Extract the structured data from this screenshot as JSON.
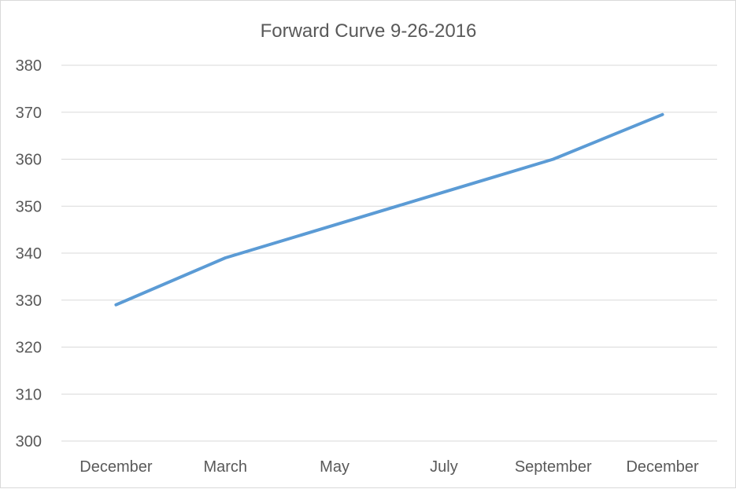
{
  "chart_data": {
    "type": "line",
    "title": "Forward Curve 9-26-2016",
    "xlabel": "",
    "ylabel": "",
    "categories": [
      "December",
      "March",
      "May",
      "July",
      "September",
      "December"
    ],
    "series": [
      {
        "values": [
          329,
          339,
          346,
          353,
          360,
          369.5
        ],
        "color": "#5b9bd5"
      }
    ],
    "ylim": [
      300,
      380
    ],
    "yticks": [
      300,
      310,
      320,
      330,
      340,
      350,
      360,
      370,
      380
    ],
    "grid": "horizontal",
    "legend": "none"
  }
}
